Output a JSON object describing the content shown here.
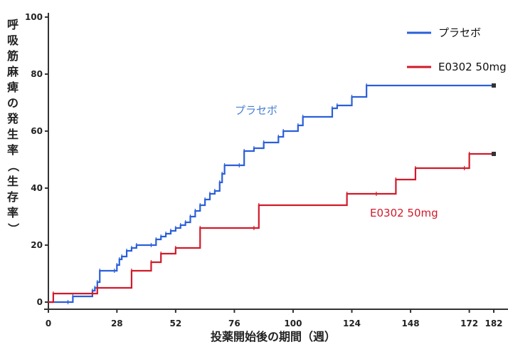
{
  "chart_data": {
    "type": "line",
    "xlabel": "投薬開始後の期間（週）",
    "ylabel": "呼吸筋麻痺の発生率（生存率）",
    "xlim": [
      0,
      182
    ],
    "ylim": [
      0,
      100
    ],
    "x_ticks": [
      0,
      28,
      52,
      76,
      100,
      124,
      148,
      172,
      182
    ],
    "y_ticks": [
      0,
      20,
      40,
      60,
      80,
      100
    ],
    "legend_position": "top-right",
    "series": [
      {
        "name": "プラセボ",
        "color": "#2b5fd9",
        "x": [
          0,
          8,
          10,
          18,
          19,
          20,
          21,
          27,
          28,
          29,
          30,
          32,
          34,
          36,
          42,
          44,
          46,
          48,
          50,
          52,
          54,
          56,
          58,
          60,
          62,
          64,
          66,
          68,
          70,
          71,
          72,
          78,
          80,
          84,
          88,
          94,
          96,
          102,
          104,
          116,
          118,
          124,
          130,
          182
        ],
        "y": [
          0,
          0,
          2,
          4,
          5,
          7,
          11,
          11,
          13,
          15,
          16,
          18,
          19,
          20,
          20,
          22,
          23,
          24,
          25,
          26,
          27,
          28,
          30,
          32,
          34,
          36,
          38,
          39,
          42,
          45,
          48,
          48,
          53,
          54,
          56,
          58,
          60,
          62,
          65,
          68,
          69,
          72,
          76,
          76
        ]
      },
      {
        "name": "E0302 50mg",
        "color": "#d11a2a",
        "x": [
          0,
          2,
          18,
          20,
          34,
          42,
          46,
          52,
          62,
          84,
          86,
          122,
          134,
          142,
          150,
          170,
          172,
          182
        ],
        "y": [
          0,
          3,
          3,
          5,
          11,
          14,
          17,
          19,
          26,
          26,
          34,
          38,
          38,
          43,
          47,
          47,
          52,
          52
        ]
      }
    ],
    "annotations": [
      {
        "text": "プラセボ",
        "color": "#4a7fd0"
      },
      {
        "text": "E0302 50mg",
        "color": "#d11a2a"
      }
    ]
  }
}
